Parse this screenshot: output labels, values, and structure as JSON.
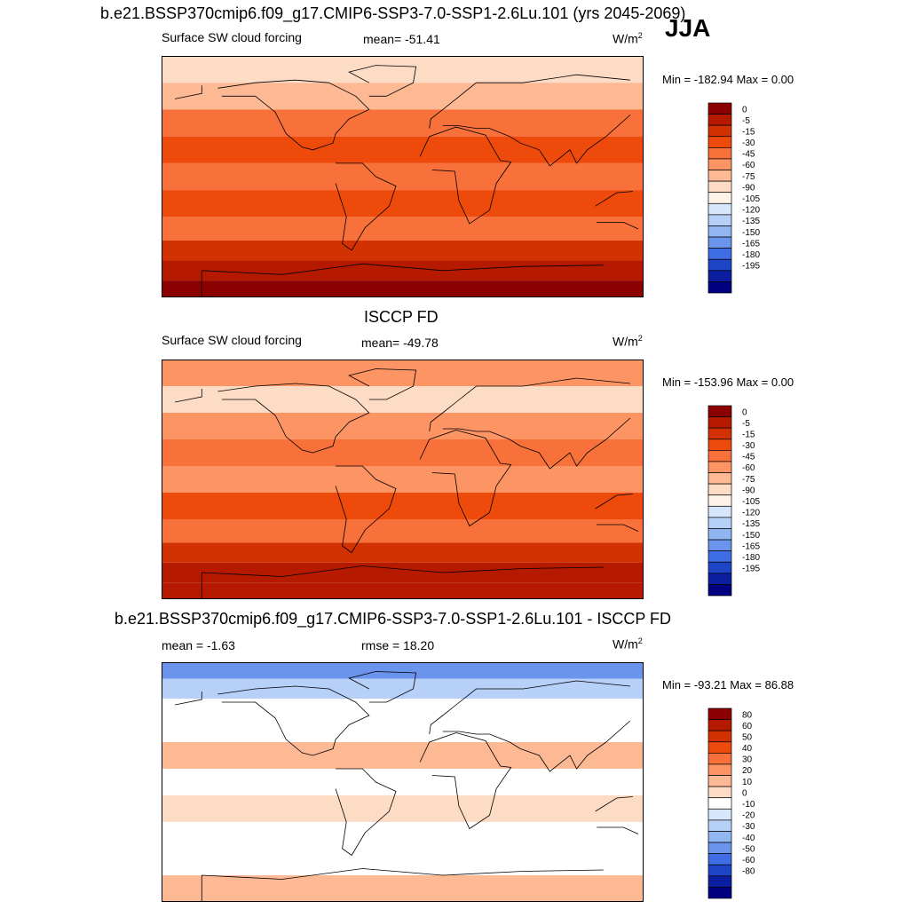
{
  "title": "b.e21.BSSP370cmip6.f09_g17.CMIP6-SSP3-7.0-SSP1-2.6Lu.101 (yrs 2045-2069)",
  "season": "JJA",
  "panels": [
    {
      "heading": "",
      "left": "Surface SW cloud forcing",
      "center": "mean= -51.41",
      "units_base": "W/m",
      "units_exp": "2",
      "minmax": "Min = -182.94 Max =   0.00"
    },
    {
      "heading": "ISCCP FD",
      "left": "Surface SW cloud forcing",
      "center": "mean= -49.78",
      "units_base": "W/m",
      "units_exp": "2",
      "minmax": "Min = -153.96 Max =   0.00"
    },
    {
      "heading": "b.e21.BSSP370cmip6.f09_g17.CMIP6-SSP3-7.0-SSP1-2.6Lu.101 - ISCCP FD",
      "left": "mean =  -1.63",
      "center": "rmse =  18.20",
      "units_base": "W/m",
      "units_exp": "2",
      "minmax": "Min = -93.21 Max =  86.88"
    }
  ],
  "chart_data": [
    {
      "type": "heatmap",
      "title": "Surface SW cloud forcing",
      "mean": -51.41,
      "min": -182.94,
      "max": 0.0,
      "colorbar": {
        "levels": [
          "0",
          "-5",
          "-15",
          "-30",
          "-45",
          "-60",
          "-75",
          "-90",
          "-105",
          "-120",
          "-135",
          "-150",
          "-165",
          "-180",
          "-195"
        ],
        "colors": [
          "#8b0000",
          "#b51a00",
          "#d23104",
          "#ee4a0c",
          "#f8703a",
          "#fc9464",
          "#fdb894",
          "#fddcc6",
          "#fff3e8",
          "#d6e6fb",
          "#b7d0f7",
          "#92b6f2",
          "#6b95ec",
          "#3f6de3",
          "#1e45c8",
          "#0b1ea0",
          "#000080"
        ]
      },
      "bands": [
        {
          "lat": 80,
          "level": -90
        },
        {
          "lat": 60,
          "level": -75
        },
        {
          "lat": 40,
          "level": -45
        },
        {
          "lat": 20,
          "level": -30
        },
        {
          "lat": 0,
          "level": -45
        },
        {
          "lat": -20,
          "level": -30
        },
        {
          "lat": -40,
          "level": -45
        },
        {
          "lat": -55,
          "level": -15
        },
        {
          "lat": -70,
          "level": -5
        },
        {
          "lat": -85,
          "level": 0
        }
      ]
    },
    {
      "type": "heatmap",
      "title": "ISCCP FD",
      "mean": -49.78,
      "min": -153.96,
      "max": 0.0,
      "colorbar": {
        "levels": [
          "0",
          "-5",
          "-15",
          "-30",
          "-45",
          "-60",
          "-75",
          "-90",
          "-105",
          "-120",
          "-135",
          "-150",
          "-165",
          "-180",
          "-195"
        ],
        "colors": [
          "#8b0000",
          "#b51a00",
          "#d23104",
          "#ee4a0c",
          "#f8703a",
          "#fc9464",
          "#fdb894",
          "#fddcc6",
          "#fff3e8",
          "#d6e6fb",
          "#b7d0f7",
          "#92b6f2",
          "#6b95ec",
          "#3f6de3",
          "#1e45c8",
          "#0b1ea0",
          "#000080"
        ]
      },
      "bands": [
        {
          "lat": 80,
          "level": -60
        },
        {
          "lat": 60,
          "level": -90
        },
        {
          "lat": 40,
          "level": -60
        },
        {
          "lat": 20,
          "level": -45
        },
        {
          "lat": 0,
          "level": -60
        },
        {
          "lat": -20,
          "level": -30
        },
        {
          "lat": -40,
          "level": -45
        },
        {
          "lat": -55,
          "level": -15
        },
        {
          "lat": -70,
          "level": -5
        },
        {
          "lat": -85,
          "level": -5
        }
      ]
    },
    {
      "type": "heatmap",
      "title": "b.e21.BSSP370cmip6.f09_g17.CMIP6-SSP3-7.0-SSP1-2.6Lu.101 - ISCCP FD",
      "mean": -1.63,
      "rmse": 18.2,
      "min": -93.21,
      "max": 86.88,
      "colorbar": {
        "levels": [
          "80",
          "60",
          "50",
          "40",
          "30",
          "20",
          "10",
          "0",
          "-10",
          "-20",
          "-30",
          "-40",
          "-50",
          "-60",
          "-80"
        ],
        "colors": [
          "#8b0000",
          "#b51a00",
          "#d23104",
          "#ee4a0c",
          "#f8703a",
          "#fc9464",
          "#fdb894",
          "#fddcc6",
          "#ffffff",
          "#d6e6fb",
          "#b7d0f7",
          "#92b6f2",
          "#6b95ec",
          "#3f6de3",
          "#1e45c8",
          "#0b1ea0",
          "#000080"
        ]
      },
      "bands": [
        {
          "lat": 85,
          "level": -50
        },
        {
          "lat": 70,
          "level": -30
        },
        {
          "lat": 55,
          "level": -10
        },
        {
          "lat": 40,
          "level": -10
        },
        {
          "lat": 20,
          "level": 10
        },
        {
          "lat": 0,
          "level": -10
        },
        {
          "lat": -20,
          "level": 0
        },
        {
          "lat": -40,
          "level": -10
        },
        {
          "lat": -60,
          "level": -10
        },
        {
          "lat": -80,
          "level": 10
        }
      ]
    }
  ]
}
